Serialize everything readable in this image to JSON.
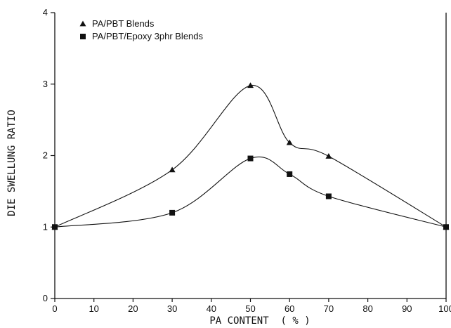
{
  "chart_data": {
    "type": "line",
    "xlabel": "PA CONTENT  ( % )",
    "ylabel": "DIE SWELLUNG RATIO",
    "x_ticks": [
      "0",
      "10",
      "20",
      "30",
      "40",
      "50",
      "60",
      "70",
      "80",
      "90",
      "100"
    ],
    "y_ticks": [
      "0",
      "1",
      "2",
      "3",
      "4"
    ],
    "xlim": [
      0,
      100
    ],
    "ylim": [
      0,
      4
    ],
    "grid": false,
    "legend_position": "top-left",
    "series": [
      {
        "name": "PA/PBT Blends",
        "marker": "triangle",
        "x": [
          0,
          30,
          50,
          60,
          70,
          100
        ],
        "y": [
          1.0,
          1.8,
          2.98,
          2.18,
          1.99,
          1.0
        ]
      },
      {
        "name": "PA/PBT/Epoxy 3phr Blends",
        "marker": "square",
        "x": [
          0,
          30,
          50,
          60,
          70,
          100
        ],
        "y": [
          1.0,
          1.2,
          1.96,
          1.74,
          1.43,
          1.0
        ]
      }
    ]
  }
}
